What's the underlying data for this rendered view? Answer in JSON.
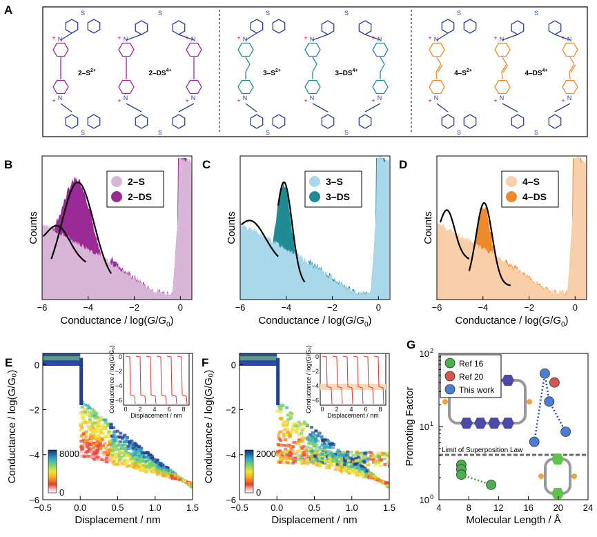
{
  "panel_labels": {
    "A": "A",
    "B": "B",
    "C": "C",
    "D": "D",
    "E": "E",
    "F": "F",
    "G": "G"
  },
  "colors": {
    "blue": "#2b3d9c",
    "purple": "#9a2a96",
    "purple_light": "#d9b6d8",
    "teal": "#1f8c93",
    "teal_light": "#a9d8ea",
    "orange": "#ef8a2a",
    "orange_light": "#f8cfa8"
  },
  "panel_a": {
    "groups": [
      {
        "name": "group-2",
        "mono": {
          "label": "2–S",
          "charge": "2+"
        },
        "dimer": {
          "label": "2–DS",
          "charge": "4+"
        }
      },
      {
        "name": "group-3",
        "mono": {
          "label": "3–S",
          "charge": "2+"
        },
        "dimer": {
          "label": "3–DS",
          "charge": "4+"
        }
      },
      {
        "name": "group-4",
        "mono": {
          "label": "4–S",
          "charge": "2+"
        },
        "dimer": {
          "label": "4–DS",
          "charge": "4+"
        }
      }
    ],
    "atom_s": "S",
    "atom_n": "N",
    "charge_plus": "+"
  },
  "hist_axis": {
    "xlabel_prefix": "Conductance / log(",
    "xlabel_G": "G",
    "xlabel_slash": "/",
    "xlabel_G0": "G",
    "xlabel_sub0": "0",
    "xlabel_suffix": ")",
    "ylabel": "Counts",
    "xticks": [
      "−6",
      "−4",
      "−2",
      "0"
    ]
  },
  "density_axis": {
    "ylabel": "Conductance / log(G/G₀)",
    "xlabel": "Displacement / nm",
    "xticks": [
      "−0.5",
      "0.0",
      "0.5",
      "1.0",
      "1.5"
    ],
    "yticks": [
      "0",
      "−2",
      "−4",
      "−6"
    ],
    "inset_ylabel": "Conductance / log(G/G₀)",
    "inset_xlabel": "Displacement / nm",
    "inset_xticks": [
      "0",
      "2",
      "4",
      "6",
      "8"
    ],
    "inset_yticks": [
      "0",
      "−2",
      "−4",
      "−6"
    ]
  },
  "chart_data": [
    {
      "panel": "B",
      "type": "area",
      "title": "",
      "xlabel": "Conductance / log(G/G0)",
      "ylabel": "Counts",
      "xlim": [
        -6,
        0.5
      ],
      "series": [
        {
          "name": "2–S",
          "peak": -5.3
        },
        {
          "name": "2–DS",
          "peak": -4.4
        }
      ],
      "legend": [
        "2–S",
        "2–DS"
      ]
    },
    {
      "panel": "C",
      "type": "area",
      "title": "",
      "xlabel": "Conductance / log(G/G0)",
      "ylabel": "Counts",
      "xlim": [
        -6,
        0.5
      ],
      "series": [
        {
          "name": "3–S",
          "peak": -5.5
        },
        {
          "name": "3–DS",
          "peak": -4.1
        }
      ],
      "legend": [
        "3–S",
        "3–DS"
      ]
    },
    {
      "panel": "D",
      "type": "area",
      "title": "",
      "xlabel": "Conductance / log(G/G0)",
      "ylabel": "Counts",
      "xlim": [
        -6,
        0.5
      ],
      "series": [
        {
          "name": "4–S",
          "peak": -5.6
        },
        {
          "name": "4–DS",
          "peak": -3.9
        }
      ],
      "legend": [
        "4–S",
        "4–DS"
      ]
    },
    {
      "panel": "E",
      "type": "heatmap",
      "xlabel": "Displacement / nm",
      "ylabel": "Conductance / log(G/G0)",
      "xlim": [
        -0.5,
        1.5
      ],
      "ylim": [
        -6,
        0.5
      ],
      "colorbar": {
        "max": "8000",
        "min": "0"
      }
    },
    {
      "panel": "F",
      "type": "heatmap",
      "xlabel": "Displacement / nm",
      "ylabel": "Conductance / log(G/G0)",
      "xlim": [
        -0.5,
        1.5
      ],
      "ylim": [
        -6,
        0.5
      ],
      "colorbar": {
        "max": "2000",
        "min": "0"
      }
    },
    {
      "panel": "G",
      "type": "scatter",
      "xlabel": "Molecular Length / Å",
      "ylabel": "Promoting Factor",
      "xlim": [
        4,
        24
      ],
      "ylim": [
        1,
        100
      ],
      "yscale": "log",
      "xticks": [
        "4",
        "8",
        "12",
        "16",
        "20",
        "24"
      ],
      "yticks_labels": [
        "10",
        "10",
        "10"
      ],
      "yticks_exp": [
        "0",
        "1",
        "2"
      ],
      "threshold": {
        "label": "Limit of Superposition Law",
        "value": 4.1
      },
      "series": [
        {
          "name": "Ref 16",
          "color": "#4caf50",
          "points": [
            [
              7,
              3.0
            ],
            [
              7,
              2.6
            ],
            [
              7,
              2.2
            ],
            [
              11,
              1.6
            ]
          ]
        },
        {
          "name": "Ref 20",
          "color": "#d9544d",
          "points": [
            [
              19.5,
              40
            ]
          ]
        },
        {
          "name": "This work",
          "color": "#4a7ed6",
          "points": [
            [
              16.8,
              6.2
            ],
            [
              18.2,
              53
            ],
            [
              18.8,
              22
            ],
            [
              21,
              8.5
            ]
          ]
        }
      ]
    }
  ]
}
